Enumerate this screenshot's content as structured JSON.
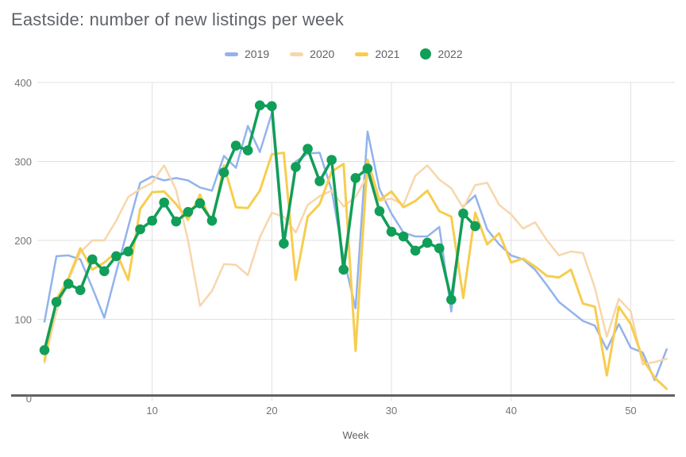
{
  "title": "Eastside: number of new listings per week",
  "legend": {
    "items": [
      {
        "label": "2019",
        "color": "#92b3ec",
        "marker": "line"
      },
      {
        "label": "2020",
        "color": "#f8d6ac",
        "marker": "line"
      },
      {
        "label": "2021",
        "color": "#f7cd4f",
        "marker": "line"
      },
      {
        "label": "2022",
        "color": "#119e58",
        "marker": "dot"
      }
    ]
  },
  "axes": {
    "x_label": "Week",
    "x_tick_labels": [
      "10",
      "20",
      "30",
      "40",
      "50"
    ],
    "y_tick_labels": [
      "0",
      "100",
      "200",
      "300",
      "400"
    ]
  },
  "colors": {
    "title_text": "#5f6368",
    "axis_text": "#757575",
    "gridline": "#e0e0e0",
    "baseline": "#616161",
    "background": "#ffffff"
  },
  "chart_data": {
    "type": "line",
    "title": "Eastside: number of new listings per week",
    "xlabel": "Week",
    "ylabel": "",
    "xlim": [
      1,
      53
    ],
    "ylim": [
      0,
      400
    ],
    "x_ticks": [
      10,
      20,
      30,
      40,
      50
    ],
    "y_ticks": [
      0,
      100,
      200,
      300,
      400
    ],
    "grid": true,
    "legend_position": "top",
    "x": [
      1,
      2,
      3,
      4,
      5,
      6,
      7,
      8,
      9,
      10,
      11,
      12,
      13,
      14,
      15,
      16,
      17,
      18,
      19,
      20,
      21,
      22,
      23,
      24,
      25,
      26,
      27,
      28,
      29,
      30,
      31,
      32,
      33,
      34,
      35,
      36,
      37,
      38,
      39,
      40,
      41,
      42,
      43,
      44,
      45,
      46,
      47,
      48,
      49,
      50,
      51,
      52,
      53
    ],
    "series": [
      {
        "name": "2019",
        "color": "#92b3ec",
        "style": "line",
        "stroke_width": 2.5,
        "values": [
          97,
          180,
          181,
          176,
          140,
          102,
          160,
          217,
          273,
          281,
          276,
          279,
          276,
          267,
          263,
          307,
          292,
          345,
          312,
          361,
          190,
          300,
          310,
          311,
          264,
          178,
          114,
          338,
          265,
          234,
          210,
          205,
          205,
          217,
          110,
          243,
          257,
          214,
          195,
          181,
          176,
          163,
          143,
          122,
          110,
          98,
          92,
          62,
          94,
          64,
          58,
          23,
          62
        ]
      },
      {
        "name": "2020",
        "color": "#f8d6ac",
        "style": "line",
        "stroke_width": 2.5,
        "values": [
          45,
          110,
          150,
          185,
          200,
          200,
          225,
          255,
          265,
          273,
          295,
          264,
          200,
          117,
          136,
          170,
          169,
          156,
          204,
          235,
          230,
          210,
          245,
          256,
          263,
          243,
          255,
          282,
          250,
          253,
          245,
          282,
          295,
          277,
          266,
          241,
          270,
          273,
          245,
          233,
          215,
          223,
          200,
          181,
          186,
          184,
          140,
          78,
          126,
          110,
          43,
          46,
          50
        ]
      },
      {
        "name": "2021",
        "color": "#f7cd4f",
        "style": "line",
        "stroke_width": 3,
        "values": [
          48,
          125,
          152,
          190,
          163,
          172,
          185,
          150,
          240,
          261,
          262,
          246,
          226,
          258,
          220,
          295,
          242,
          241,
          263,
          309,
          311,
          150,
          230,
          246,
          287,
          297,
          60,
          302,
          251,
          262,
          242,
          250,
          263,
          237,
          230,
          127,
          235,
          195,
          209,
          172,
          177,
          167,
          155,
          153,
          163,
          120,
          116,
          29,
          116,
          94,
          50,
          26,
          12
        ]
      },
      {
        "name": "2022",
        "color": "#119e58",
        "style": "line+markers",
        "stroke_width": 3.5,
        "marker_radius": 6.3,
        "values": [
          61,
          122,
          145,
          137,
          176,
          161,
          180,
          186,
          214,
          225,
          248,
          224,
          236,
          247,
          225,
          286,
          320,
          314,
          371,
          370,
          196,
          293,
          316,
          275,
          302,
          163,
          279,
          291,
          237,
          211,
          205,
          187,
          197,
          190,
          125,
          234,
          218
        ]
      }
    ]
  }
}
